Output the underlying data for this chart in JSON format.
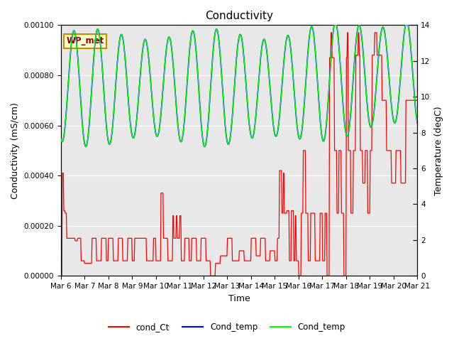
{
  "title": "Conductivity",
  "xlabel": "Time",
  "ylabel_left": "Conductivity (mS/cm)",
  "ylabel_right": "Temperature (degC)",
  "ylim_left": [
    0,
    0.001
  ],
  "ylim_right": [
    0,
    14
  ],
  "plot_bg_color": "#e8e8e8",
  "label_box": "WP_met",
  "legend": [
    "cond_Ct",
    "Cond_temp",
    "Cond_temp"
  ],
  "legend_colors": [
    "red",
    "blue",
    "lime"
  ],
  "x_ticks": [
    "Mar 6",
    "Mar 7",
    "Mar 8",
    "Mar 9",
    "Mar 10",
    "Mar 11",
    "Mar 12",
    "Mar 13",
    "Mar 14",
    "Mar 15",
    "Mar 16",
    "Mar 17",
    "Mar 18",
    "Mar 19",
    "Mar 20",
    "Mar 21"
  ],
  "title_fontsize": 11,
  "axis_fontsize": 9,
  "tick_fontsize": 7.5
}
